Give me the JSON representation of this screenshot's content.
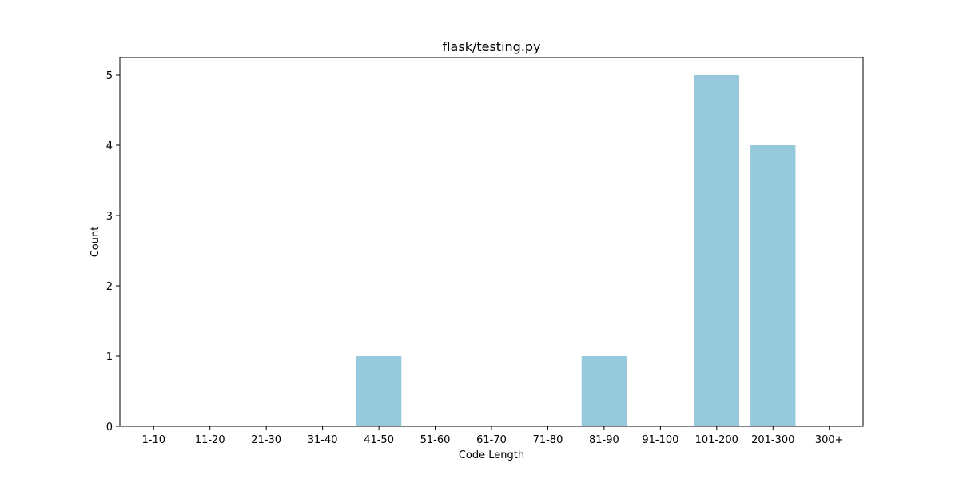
{
  "chart_data": {
    "type": "bar",
    "title": "flask/testing.py",
    "xlabel": "Code Length",
    "ylabel": "Count",
    "categories": [
      "1-10",
      "11-20",
      "21-30",
      "31-40",
      "41-50",
      "51-60",
      "61-70",
      "71-80",
      "81-90",
      "91-100",
      "101-200",
      "201-300",
      "300+"
    ],
    "values": [
      0,
      0,
      0,
      0,
      1,
      0,
      0,
      0,
      1,
      0,
      5,
      4,
      0
    ],
    "ylim": [
      0,
      5.25
    ],
    "yticks": [
      "0",
      "1",
      "2",
      "3",
      "4",
      "5"
    ],
    "bar_color": "#96c9dc",
    "grid": false,
    "legend": "none"
  }
}
